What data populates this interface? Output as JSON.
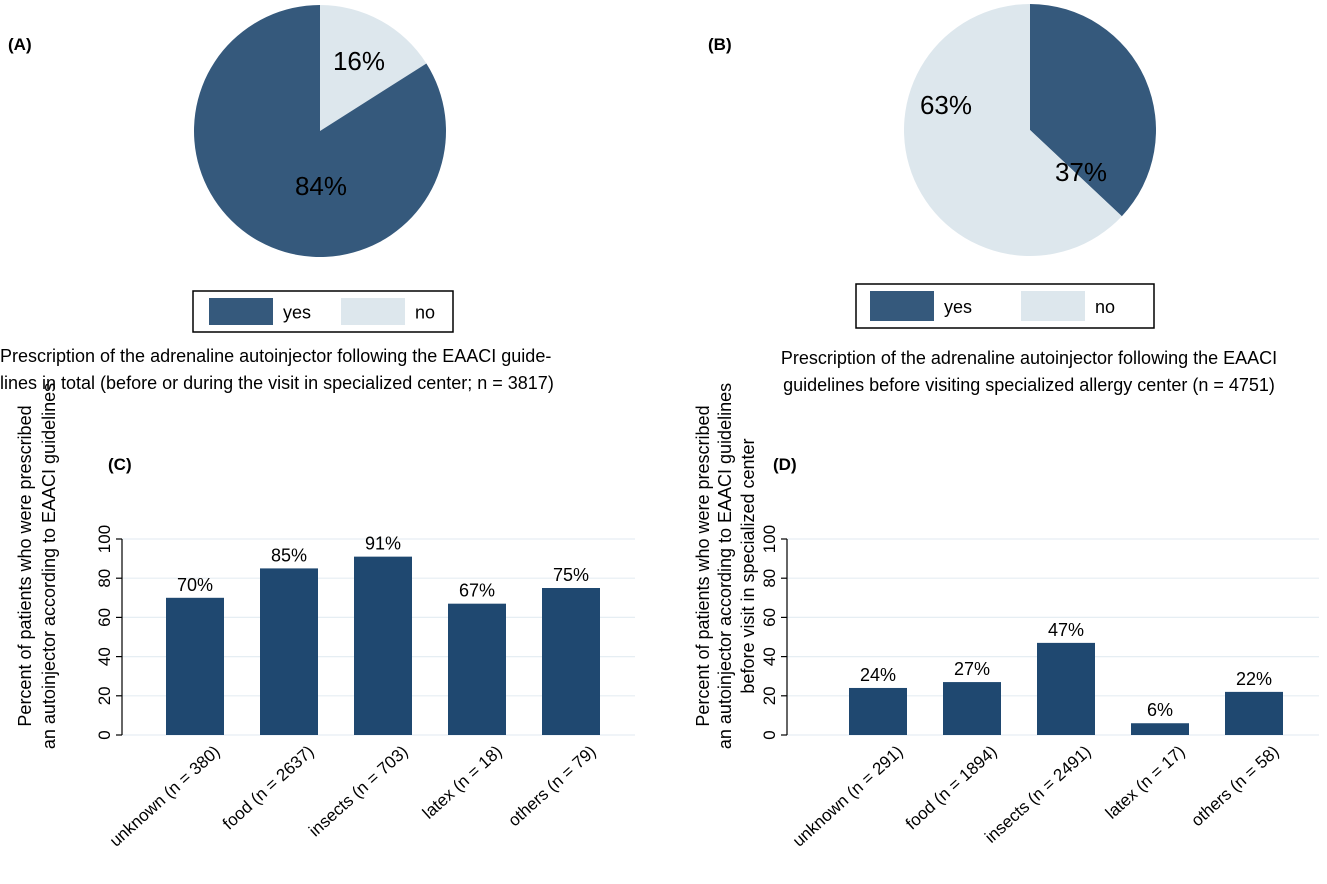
{
  "colors": {
    "yes": "#35597c",
    "no": "#dde7ed",
    "bar": "#1f4870",
    "grid": "#e6eef3"
  },
  "chart_data": [
    {
      "type": "pie",
      "panel": "(A)",
      "categories": [
        "yes",
        "no"
      ],
      "values": [
        84,
        16
      ],
      "labels": [
        "84%",
        "16%"
      ],
      "caption": [
        "Prescription of the adrenaline autoinjector following the EAACI guide-",
        "lines in total (before or during the visit in specialized center; n = 3817)"
      ],
      "legend": "bottom"
    },
    {
      "type": "pie",
      "panel": "(B)",
      "categories": [
        "yes",
        "no"
      ],
      "values": [
        37,
        63
      ],
      "labels": [
        "37%",
        "63%"
      ],
      "caption": [
        "Prescription of the adrenaline autoinjector following the EAACI",
        "guidelines before visiting specialized allergy center (n = 4751)"
      ],
      "legend": "bottom"
    },
    {
      "type": "bar",
      "panel": "(C)",
      "categories": [
        "unknown (n = 380)",
        "food (n = 2637)",
        "insects (n = 703)",
        "latex (n = 18)",
        "others (n = 79)"
      ],
      "values": [
        70,
        85,
        91,
        67,
        75
      ],
      "value_labels": [
        "70%",
        "85%",
        "91%",
        "67%",
        "75%"
      ],
      "ylabel": [
        "Percent of patients who were prescribed",
        "an autoinjector according to EAACI guidelines"
      ],
      "yticks": [
        "0",
        "20",
        "40",
        "60",
        "80",
        "100"
      ],
      "ylim": [
        0,
        100
      ],
      "grid": true
    },
    {
      "type": "bar",
      "panel": "(D)",
      "categories": [
        "unknown (n = 291)",
        "food (n = 1894)",
        "insects (n = 2491)",
        "latex (n = 17)",
        "others (n = 58)"
      ],
      "values": [
        24,
        27,
        47,
        6,
        22
      ],
      "value_labels": [
        "24%",
        "27%",
        "47%",
        "6%",
        "22%"
      ],
      "ylabel": [
        "Percent of patients who were prescribed",
        "an autoinjector according to EAACI guidelines",
        "before visit in specialized center"
      ],
      "yticks": [
        "0",
        "20",
        "40",
        "60",
        "80",
        "100"
      ],
      "ylim": [
        0,
        100
      ],
      "grid": true
    }
  ]
}
